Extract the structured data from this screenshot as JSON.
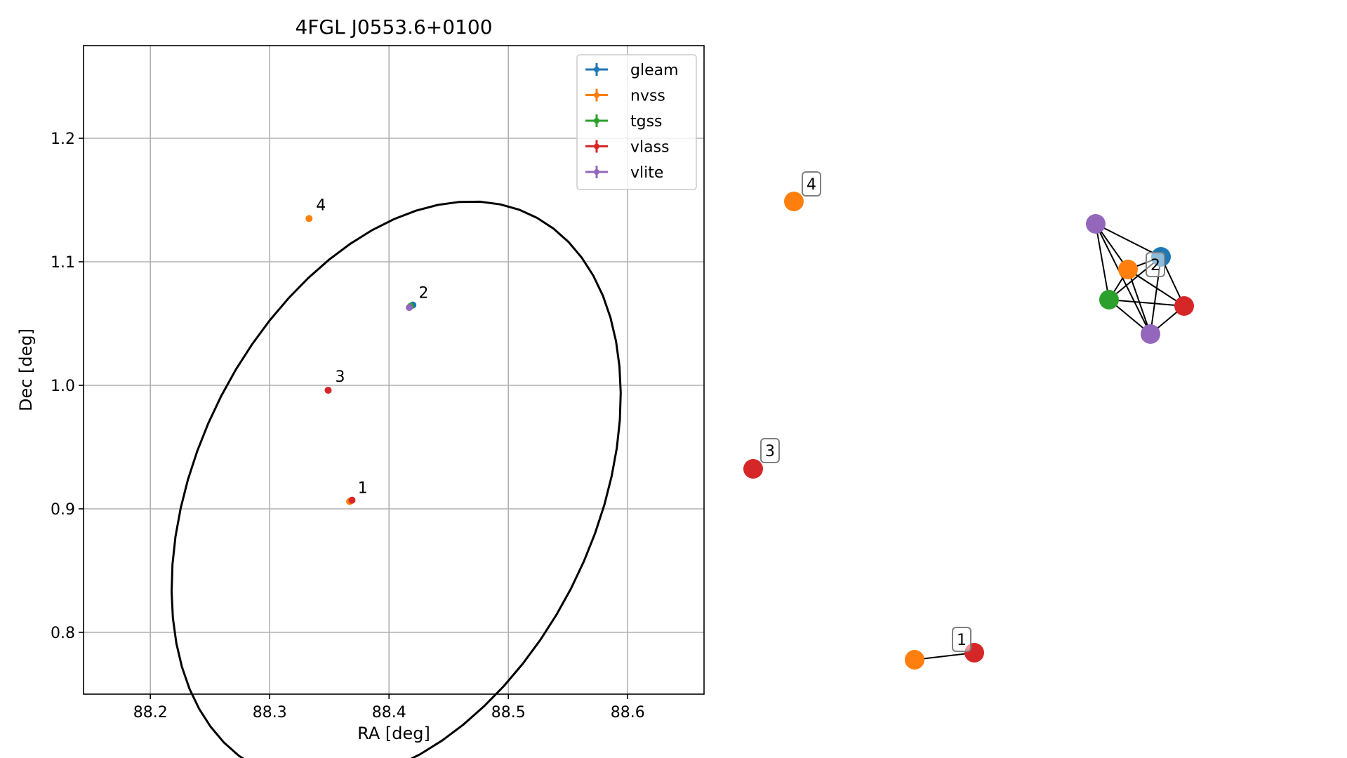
{
  "colors": {
    "gleam": "#1f77b4",
    "nvss": "#ff7f0e",
    "tgss": "#2ca02c",
    "vlass": "#d62728",
    "vlite": "#9467bd",
    "grid": "#b0b0b0",
    "ellipse": "#000000"
  },
  "chart_data": [
    {
      "type": "scatter",
      "title": "4FGL J0553.6+0100",
      "xlabel": "RA [deg]",
      "ylabel": "Dec [deg]",
      "xlim": [
        88.144,
        88.664
      ],
      "ylim": [
        0.75,
        1.275
      ],
      "xticks": [
        "88.2",
        "88.3",
        "88.4",
        "88.5",
        "88.6"
      ],
      "yticks": [
        "0.8",
        "0.9",
        "1.0",
        "1.1",
        "1.2"
      ],
      "grid": true,
      "legend_position": "top-right",
      "legend": [
        "gleam",
        "nvss",
        "tgss",
        "vlass",
        "vlite"
      ],
      "ellipse": {
        "center_ra": 88.406,
        "center_dec": 0.9135,
        "ra_semi_axis": 0.166,
        "dec_semi_axis": 0.2515,
        "rotation_deg": -28
      },
      "series": [
        {
          "name": "gleam",
          "points": [
            {
              "ra": 88.42,
              "dec": 1.065
            }
          ]
        },
        {
          "name": "nvss",
          "points": [
            {
              "ra": 88.367,
              "dec": 0.906
            },
            {
              "ra": 88.333,
              "dec": 1.135
            }
          ]
        },
        {
          "name": "tgss",
          "points": [
            {
              "ra": 88.418,
              "dec": 1.064
            }
          ]
        },
        {
          "name": "vlass",
          "points": [
            {
              "ra": 88.369,
              "dec": 0.907
            },
            {
              "ra": 88.349,
              "dec": 0.996
            }
          ]
        },
        {
          "name": "vlite",
          "points": [
            {
              "ra": 88.417,
              "dec": 1.063
            }
          ]
        }
      ],
      "group_labels": [
        {
          "label": "1",
          "ra": 88.368,
          "dec": 0.906
        },
        {
          "label": "2",
          "ra": 88.419,
          "dec": 1.064
        },
        {
          "label": "3",
          "ra": 88.349,
          "dec": 0.996
        },
        {
          "label": "4",
          "ra": 88.333,
          "dec": 1.135
        }
      ]
    },
    {
      "type": "graph",
      "groups": [
        {
          "label": "1",
          "nodes": [
            {
              "survey": "nvss"
            },
            {
              "survey": "vlass"
            }
          ],
          "edges": [
            [
              0,
              1
            ]
          ]
        },
        {
          "label": "2",
          "nodes": [
            {
              "survey": "vlite"
            },
            {
              "survey": "gleam"
            },
            {
              "survey": "nvss"
            },
            {
              "survey": "tgss"
            },
            {
              "survey": "vlass"
            },
            {
              "survey": "vlite"
            }
          ],
          "edges": [
            [
              0,
              1
            ],
            [
              0,
              2
            ],
            [
              0,
              3
            ],
            [
              0,
              5
            ],
            [
              1,
              2
            ],
            [
              1,
              3
            ],
            [
              1,
              4
            ],
            [
              1,
              5
            ],
            [
              2,
              3
            ],
            [
              2,
              4
            ],
            [
              2,
              5
            ],
            [
              3,
              4
            ],
            [
              3,
              5
            ],
            [
              4,
              5
            ]
          ]
        },
        {
          "label": "3",
          "nodes": [
            {
              "survey": "vlass"
            }
          ],
          "edges": []
        },
        {
          "label": "4",
          "nodes": [
            {
              "survey": "nvss"
            }
          ],
          "edges": []
        }
      ]
    }
  ]
}
